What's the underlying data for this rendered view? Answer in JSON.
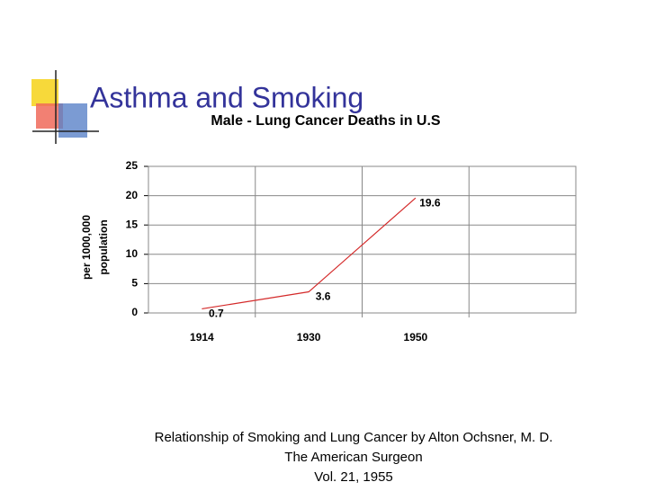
{
  "slide_title": "Asthma and Smoking",
  "chart_data": {
    "type": "line",
    "title": "Male - Lung Cancer Deaths in U.S",
    "ylabel": [
      "per 1000,000",
      "population"
    ],
    "categories": [
      "1914",
      "1930",
      "1950",
      null
    ],
    "series": [
      {
        "name": null,
        "color": "#d42a2a",
        "values": [
          0.7,
          3.6,
          19.6,
          null
        ]
      }
    ],
    "ylim": [
      0,
      25
    ],
    "yticks": [
      0,
      5,
      10,
      15,
      20,
      25
    ],
    "grid": true,
    "data_labels": true
  },
  "caption": [
    "Relationship of Smoking and Lung Cancer  by Alton Ochsner, M. D.",
    "The American Surgeon",
    "Vol. 21, 1955"
  ]
}
